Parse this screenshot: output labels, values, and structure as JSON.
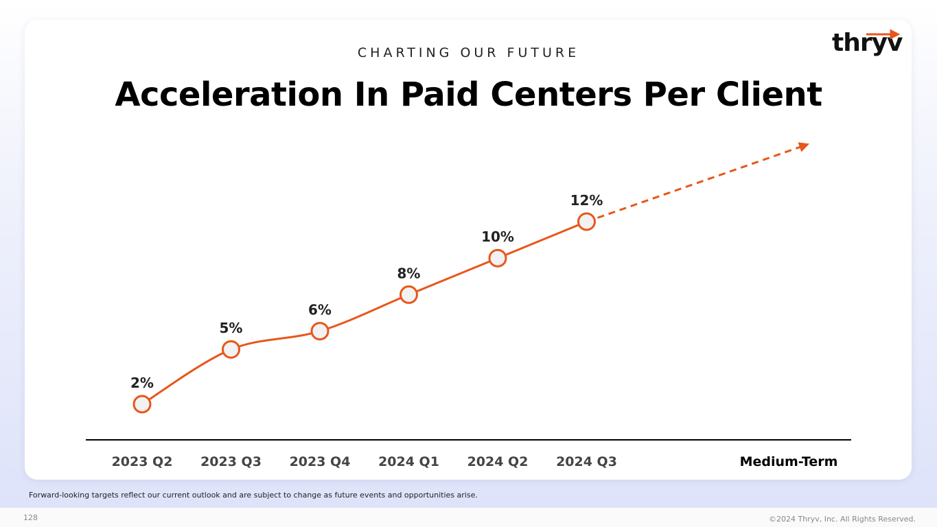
{
  "header": {
    "kicker": "CHARTING OUR FUTURE",
    "title": "Acceleration In Paid Centers Per Client",
    "logo": "thryv"
  },
  "chart_data": {
    "type": "line",
    "categories": [
      "2023 Q2",
      "2023 Q3",
      "2023 Q4",
      "2024 Q1",
      "2024 Q2",
      "2024 Q3",
      "Medium-Term"
    ],
    "values": [
      2,
      5,
      6,
      8,
      10,
      12,
      null
    ],
    "value_labels": [
      "2%",
      "5%",
      "6%",
      "8%",
      "10%",
      "12%",
      null
    ],
    "color": "#e8561a"
  },
  "footer": {
    "note": "Forward-looking targets reflect our current outlook and are subject to change as future events and opportunities arise.",
    "page": "128",
    "copyright": "©2024 Thryv, Inc. All Rights Reserved."
  }
}
